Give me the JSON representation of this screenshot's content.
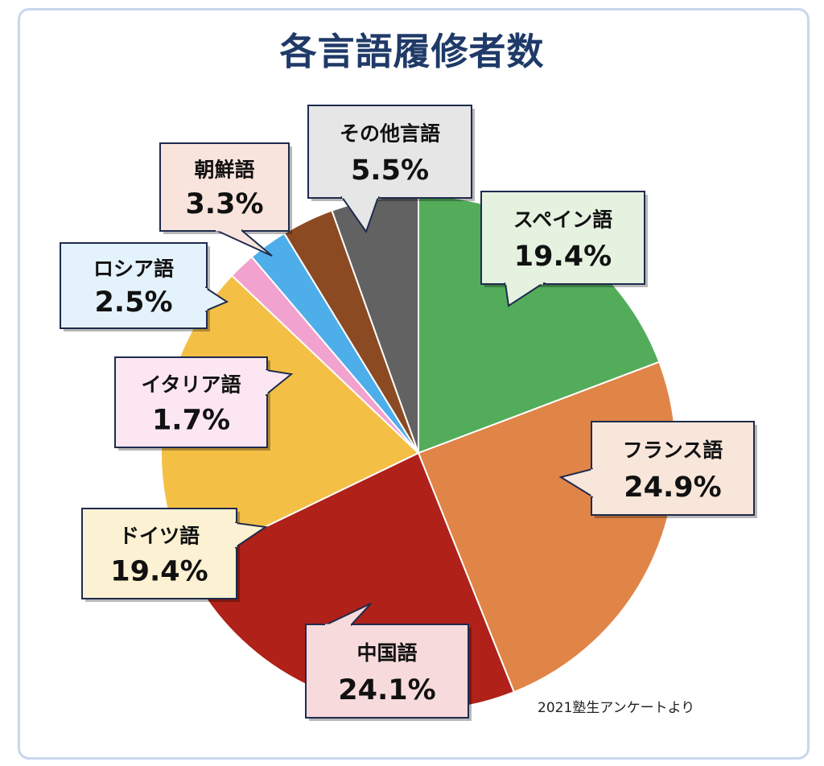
{
  "chart_data": {
    "type": "pie",
    "title": "各言語履修者数",
    "slices": [
      {
        "name": "スペイン語",
        "label": "19.4%",
        "value": 19.4,
        "color": "#52ac5a",
        "boxFill": "#e6f2e0"
      },
      {
        "name": "フランス語",
        "label": "24.9%",
        "value": 24.9,
        "color": "#e08447",
        "boxFill": "#f9e6da"
      },
      {
        "name": "中国語",
        "label": "24.1%",
        "value": 24.1,
        "color": "#af2119",
        "boxFill": "#f7dadb"
      },
      {
        "name": "ドイツ語",
        "label": "19.4%",
        "value": 19.4,
        "color": "#f4bf45",
        "boxFill": "#fcf2d3"
      },
      {
        "name": "イタリア語",
        "label": "1.7%",
        "value": 1.7,
        "color": "#f2a2cf",
        "boxFill": "#fbe6f1"
      },
      {
        "name": "ロシア語",
        "label": "2.5%",
        "value": 2.5,
        "color": "#4eaeea",
        "boxFill": "#e4f2fc"
      },
      {
        "name": "朝鮮語",
        "label": "3.3%",
        "value": 3.3,
        "color": "#8b4a22",
        "boxFill": "#f8e4dc"
      },
      {
        "name": "その他言語",
        "label": "5.5%",
        "value": 5.5,
        "color": "#626262",
        "boxFill": "#e6e6e6"
      }
    ],
    "source": "2021塾生アンケートより"
  },
  "colors": {
    "title": "#1f3a68",
    "callout_border": "#1f2b4d",
    "frame_border": "#c9d6ee"
  }
}
